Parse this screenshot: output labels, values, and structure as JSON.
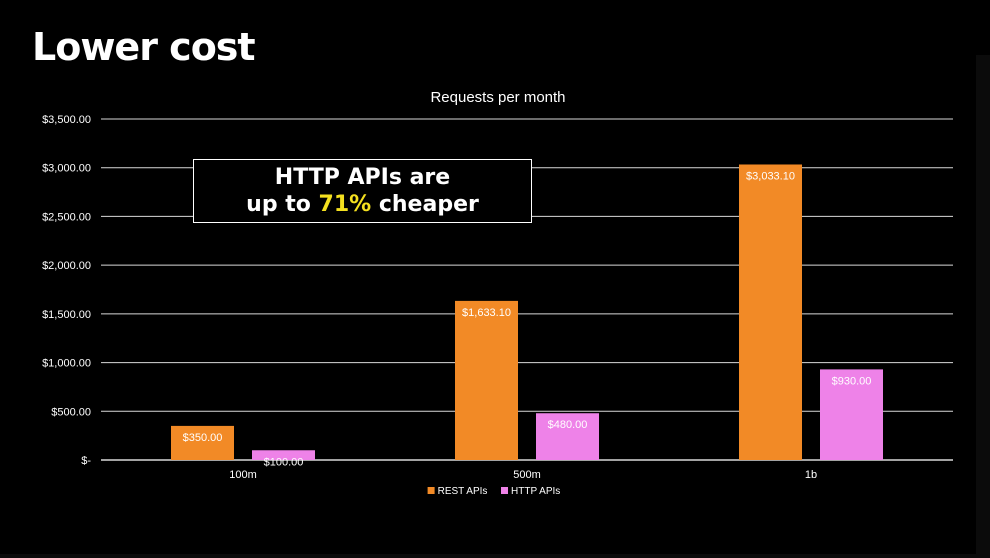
{
  "slide": {
    "title": "Lower cost"
  },
  "callout": {
    "line1": "HTTP APIs are",
    "line2_prefix": "up to ",
    "line2_highlight": "71%",
    "line2_suffix": " cheaper",
    "highlight_color": "#f4e01f"
  },
  "chart_data": {
    "type": "bar",
    "title": "Requests per month",
    "xlabel": "",
    "ylabel": "",
    "categories": [
      "100m",
      "500m",
      "1b"
    ],
    "series": [
      {
        "name": "REST APIs",
        "color": "#f28a26",
        "values": [
          350.0,
          1633.1,
          3033.1
        ],
        "labels": [
          "$350.00",
          "$1,633.10",
          "$3,033.10"
        ]
      },
      {
        "name": "HTTP APIs",
        "color": "#ee82e8",
        "values": [
          100.0,
          480.0,
          930.0
        ],
        "labels": [
          "$100.00",
          "$480.00",
          "$930.00"
        ]
      }
    ],
    "ylim": [
      0,
      3500
    ],
    "yticks": [
      0,
      500,
      1000,
      1500,
      2000,
      2500,
      3000,
      3500
    ],
    "ytick_labels": [
      "$-",
      "$500.00",
      "$1,000.00",
      "$1,500.00",
      "$2,000.00",
      "$2,500.00",
      "$3,000.00",
      "$3,500.00"
    ],
    "grid": true,
    "legend": "bottom-center"
  }
}
